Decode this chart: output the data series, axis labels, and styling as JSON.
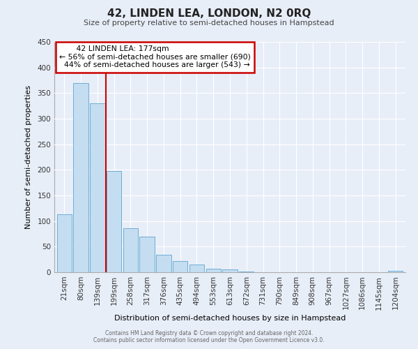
{
  "title": "42, LINDEN LEA, LONDON, N2 0RQ",
  "subtitle": "Size of property relative to semi-detached houses in Hampstead",
  "xlabel": "Distribution of semi-detached houses by size in Hampstead",
  "ylabel": "Number of semi-detached properties",
  "bar_labels": [
    "21sqm",
    "80sqm",
    "139sqm",
    "199sqm",
    "258sqm",
    "317sqm",
    "376sqm",
    "435sqm",
    "494sqm",
    "553sqm",
    "613sqm",
    "672sqm",
    "731sqm",
    "790sqm",
    "849sqm",
    "908sqm",
    "967sqm",
    "1027sqm",
    "1086sqm",
    "1145sqm",
    "1204sqm"
  ],
  "bar_values": [
    113,
    370,
    330,
    198,
    86,
    70,
    34,
    22,
    15,
    7,
    5,
    2,
    0,
    0,
    0,
    0,
    0,
    0,
    0,
    0,
    3
  ],
  "bar_color": "#c5ddf0",
  "bar_edge_color": "#6baed6",
  "property_line_label": "42 LINDEN LEA: 177sqm",
  "smaller_pct": 56,
  "smaller_count": 690,
  "larger_pct": 44,
  "larger_count": 543,
  "annotation_box_color": "#ffffff",
  "annotation_box_edge": "#cc0000",
  "property_line_color": "#cc0000",
  "ylim": [
    0,
    450
  ],
  "yticks": [
    0,
    50,
    100,
    150,
    200,
    250,
    300,
    350,
    400,
    450
  ],
  "bg_color": "#e8eef8",
  "grid_color": "#ffffff",
  "footer_line1": "Contains HM Land Registry data © Crown copyright and database right 2024.",
  "footer_line2": "Contains public sector information licensed under the Open Government Licence v3.0."
}
